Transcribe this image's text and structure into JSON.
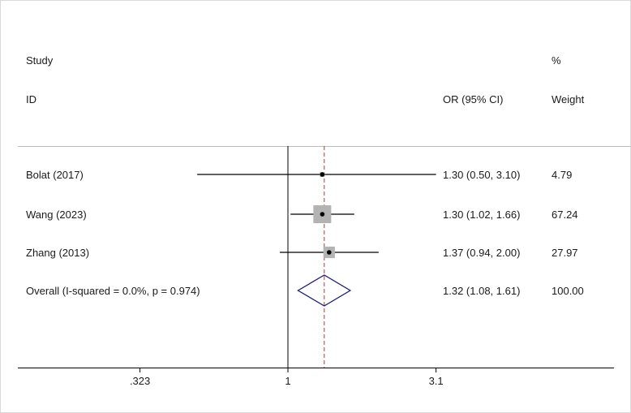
{
  "chart_data": {
    "type": "forest",
    "header": {
      "study_line1": "Study",
      "study_line2": "ID",
      "effect_label": "OR (95% CI)",
      "weight_line1": "%",
      "weight_line2": "Weight"
    },
    "scale": "log",
    "null_value": 1,
    "overall_estimate": 1.32,
    "x_ticks": [
      {
        "label": ".323",
        "value": 0.323
      },
      {
        "label": "1",
        "value": 1
      },
      {
        "label": "3.1",
        "value": 3.1
      }
    ],
    "studies": [
      {
        "label": "Bolat (2017)",
        "or": 1.3,
        "lower": 0.5,
        "upper": 3.1,
        "ci_text": "1.30 (0.50, 3.10)",
        "weight": 4.79,
        "weight_text": "4.79"
      },
      {
        "label": "Wang (2023)",
        "or": 1.3,
        "lower": 1.02,
        "upper": 1.66,
        "ci_text": "1.30 (1.02, 1.66)",
        "weight": 67.24,
        "weight_text": "67.24"
      },
      {
        "label": "Zhang (2013)",
        "or": 1.37,
        "lower": 0.94,
        "upper": 2.0,
        "ci_text": "1.37 (0.94, 2.00)",
        "weight": 27.97,
        "weight_text": "27.97"
      }
    ],
    "overall": {
      "label": "Overall  (I-squared = 0.0%, p = 0.974)",
      "or": 1.32,
      "lower": 1.08,
      "upper": 1.61,
      "ci_text": "1.32 (1.08, 1.61)",
      "weight_text": "100.00"
    },
    "colors": {
      "ci_line": "#000000",
      "weight_box": "#b3b3b3",
      "diamond": "#1c1c7a",
      "overall_line": "#b03a3a",
      "axis": "#000000",
      "divider": "#bdbdbd"
    }
  }
}
